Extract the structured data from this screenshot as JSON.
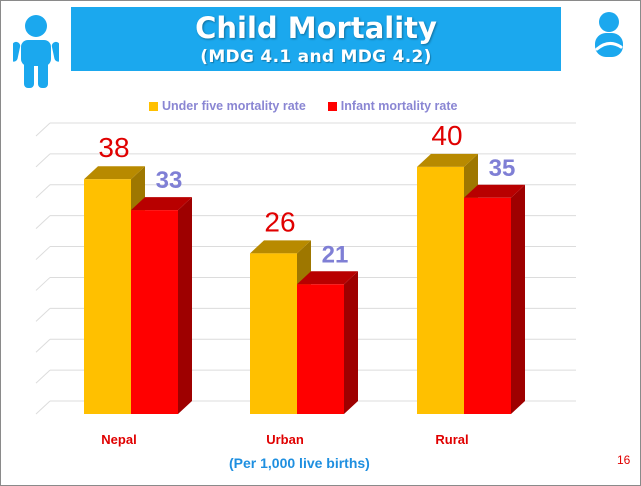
{
  "slide": {
    "title": "Child Mortality",
    "subtitle": "(MDG 4.1  and MDG 4.2)",
    "footnote": "(Per 1,000 live births)",
    "page_number": "16"
  },
  "icons": {
    "left": "child-icon",
    "right": "baby-icon"
  },
  "colors": {
    "title_bg": "#1ba8ee",
    "under_five": "#ffc000",
    "infant": "#ff0000",
    "category_label": "#e00000",
    "value_under_five": "#e00000",
    "value_infant": "#7f7fd5"
  },
  "chart_data": {
    "type": "bar",
    "categories": [
      "Nepal",
      "Urban",
      "Rural"
    ],
    "series": [
      {
        "name": "Under five mortality rate",
        "values": [
          38,
          26,
          40
        ]
      },
      {
        "name": "Infant mortality rate",
        "values": [
          33,
          21,
          35
        ]
      }
    ],
    "ylim": [
      0,
      45
    ],
    "grid": true,
    "legend": "top"
  }
}
